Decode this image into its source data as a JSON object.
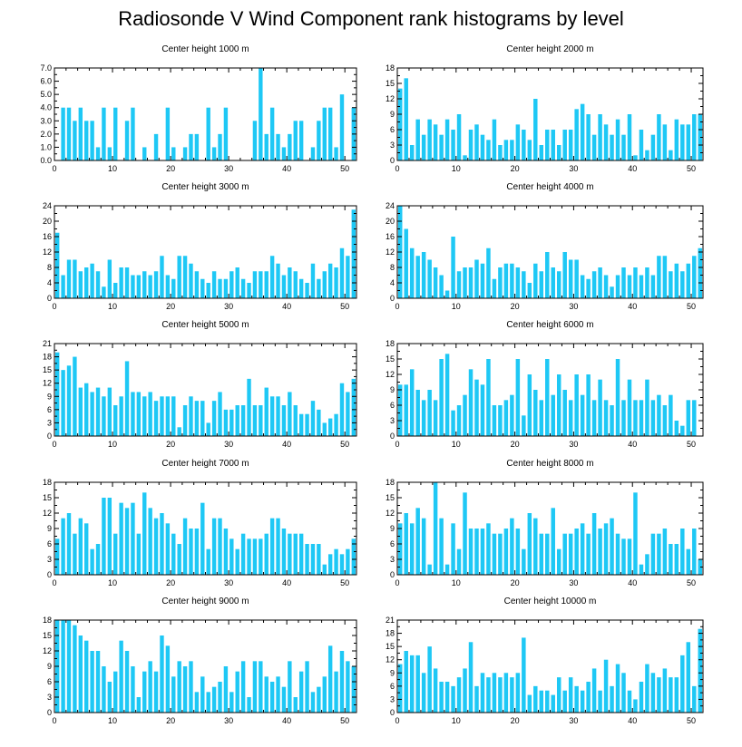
{
  "title": "Radiosonde V Wind Component rank histograms by level",
  "colors": {
    "bar": "#1ec8f5",
    "axis": "#000000",
    "background": "#ffffff"
  },
  "chart_data": [
    {
      "type": "bar",
      "title": "Center height 1000 m",
      "xlim": [
        0,
        52
      ],
      "ylim": [
        0,
        7
      ],
      "xticks": [
        0,
        10,
        20,
        30,
        40,
        50
      ],
      "yticks": [
        0,
        1,
        2,
        3,
        4,
        5,
        6,
        7
      ],
      "ytick_labels": [
        "0.0",
        "1.0",
        "2.0",
        "3.0",
        "4.0",
        "5.0",
        "6.0",
        "7.0"
      ],
      "values": [
        0,
        4,
        4,
        3,
        4,
        3,
        3,
        1,
        4,
        1,
        4,
        0,
        3,
        4,
        0,
        1,
        0,
        2,
        0,
        4,
        1,
        0,
        1,
        2,
        2,
        0,
        4,
        1,
        2,
        4,
        0,
        0,
        0,
        0,
        3,
        7,
        2,
        4,
        2,
        1,
        2,
        3,
        3,
        0,
        1,
        3,
        4,
        4,
        1,
        5,
        0,
        4
      ]
    },
    {
      "type": "bar",
      "title": "Center height 2000 m",
      "xlim": [
        0,
        52
      ],
      "ylim": [
        0,
        18
      ],
      "xticks": [
        0,
        10,
        20,
        30,
        40,
        50
      ],
      "yticks": [
        0,
        3,
        6,
        9,
        12,
        15,
        18
      ],
      "ytick_labels": [
        "0",
        "3",
        "6",
        "9",
        "12",
        "15",
        "18"
      ],
      "values": [
        14,
        16,
        3,
        8,
        5,
        8,
        7,
        5,
        8,
        6,
        9,
        1,
        6,
        7,
        5,
        4,
        8,
        3,
        4,
        4,
        7,
        6,
        4,
        12,
        3,
        6,
        6,
        3,
        6,
        6,
        10,
        11,
        9,
        5,
        9,
        7,
        5,
        8,
        5,
        9,
        1,
        6,
        2,
        5,
        9,
        7,
        2,
        8,
        7,
        7,
        9,
        9
      ]
    },
    {
      "type": "bar",
      "title": "Center height 3000 m",
      "xlim": [
        0,
        52
      ],
      "ylim": [
        0,
        24
      ],
      "xticks": [
        0,
        10,
        20,
        30,
        40,
        50
      ],
      "yticks": [
        0,
        4,
        8,
        12,
        16,
        20,
        24
      ],
      "ytick_labels": [
        "0",
        "4",
        "8",
        "12",
        "16",
        "20",
        "24"
      ],
      "values": [
        17,
        6,
        10,
        10,
        7,
        8,
        9,
        7,
        3,
        10,
        4,
        8,
        8,
        6,
        6,
        7,
        6,
        7,
        11,
        6,
        5,
        11,
        11,
        9,
        7,
        5,
        4,
        7,
        5,
        5,
        7,
        8,
        5,
        4,
        7,
        7,
        7,
        11,
        9,
        6,
        8,
        7,
        5,
        4,
        9,
        5,
        7,
        9,
        8,
        13,
        11,
        23
      ]
    },
    {
      "type": "bar",
      "title": "Center height 4000 m",
      "xlim": [
        0,
        52
      ],
      "ylim": [
        0,
        24
      ],
      "xticks": [
        0,
        10,
        20,
        30,
        40,
        50
      ],
      "yticks": [
        0,
        4,
        8,
        12,
        16,
        20,
        24
      ],
      "ytick_labels": [
        "0",
        "4",
        "8",
        "12",
        "16",
        "20",
        "24"
      ],
      "values": [
        24,
        18,
        13,
        11,
        12,
        10,
        8,
        6,
        2,
        16,
        7,
        8,
        8,
        10,
        9,
        13,
        5,
        8,
        9,
        9,
        8,
        7,
        4,
        9,
        7,
        12,
        8,
        7,
        12,
        10,
        10,
        6,
        5,
        7,
        8,
        6,
        3,
        6,
        8,
        6,
        8,
        6,
        8,
        6,
        11,
        11,
        7,
        9,
        7,
        9,
        11,
        13
      ]
    },
    {
      "type": "bar",
      "title": "Center height 5000 m",
      "xlim": [
        0,
        52
      ],
      "ylim": [
        0,
        21
      ],
      "xticks": [
        0,
        10,
        20,
        30,
        40,
        50
      ],
      "yticks": [
        0,
        3,
        6,
        9,
        12,
        15,
        18,
        21
      ],
      "ytick_labels": [
        "0",
        "3",
        "6",
        "9",
        "12",
        "15",
        "18",
        "21"
      ],
      "values": [
        19,
        15,
        16,
        18,
        11,
        12,
        10,
        11,
        9,
        11,
        7,
        9,
        17,
        10,
        10,
        9,
        10,
        8,
        9,
        9,
        9,
        2,
        7,
        9,
        8,
        8,
        3,
        8,
        10,
        6,
        6,
        7,
        7,
        13,
        7,
        7,
        11,
        9,
        9,
        7,
        10,
        7,
        5,
        5,
        8,
        6,
        3,
        4,
        5,
        12,
        10,
        13
      ]
    },
    {
      "type": "bar",
      "title": "Center height 6000 m",
      "xlim": [
        0,
        52
      ],
      "ylim": [
        0,
        18
      ],
      "xticks": [
        0,
        10,
        20,
        30,
        40,
        50
      ],
      "yticks": [
        0,
        3,
        6,
        9,
        12,
        15,
        18
      ],
      "ytick_labels": [
        "0",
        "3",
        "6",
        "9",
        "12",
        "15",
        "18"
      ],
      "values": [
        10,
        10,
        13,
        9,
        7,
        9,
        7,
        15,
        16,
        5,
        6,
        8,
        13,
        11,
        10,
        15,
        6,
        6,
        7,
        8,
        15,
        4,
        12,
        9,
        7,
        15,
        8,
        12,
        9,
        7,
        12,
        8,
        12,
        7,
        11,
        7,
        6,
        15,
        7,
        11,
        7,
        7,
        11,
        7,
        8,
        6,
        8,
        3,
        2,
        7,
        7,
        0
      ]
    },
    {
      "type": "bar",
      "title": "Center height 7000 m",
      "xlim": [
        0,
        52
      ],
      "ylim": [
        0,
        18
      ],
      "xticks": [
        0,
        10,
        20,
        30,
        40,
        50
      ],
      "yticks": [
        0,
        3,
        6,
        9,
        12,
        15,
        18
      ],
      "ytick_labels": [
        "0",
        "3",
        "6",
        "9",
        "12",
        "15",
        "18"
      ],
      "values": [
        7,
        11,
        12,
        8,
        11,
        10,
        5,
        6,
        15,
        15,
        8,
        14,
        13,
        14,
        8,
        16,
        13,
        11,
        12,
        10,
        8,
        6,
        11,
        9,
        9,
        14,
        5,
        11,
        11,
        9,
        7,
        5,
        8,
        7,
        7,
        7,
        8,
        11,
        11,
        9,
        8,
        8,
        8,
        6,
        6,
        6,
        2,
        4,
        5,
        4,
        5,
        7
      ]
    },
    {
      "type": "bar",
      "title": "Center height 8000 m",
      "xlim": [
        0,
        52
      ],
      "ylim": [
        0,
        18
      ],
      "xticks": [
        0,
        10,
        20,
        30,
        40,
        50
      ],
      "yticks": [
        0,
        3,
        6,
        9,
        12,
        15,
        18
      ],
      "ytick_labels": [
        "0",
        "3",
        "6",
        "9",
        "12",
        "15",
        "18"
      ],
      "values": [
        10,
        12,
        10,
        13,
        11,
        2,
        18,
        11,
        2,
        10,
        5,
        16,
        9,
        9,
        9,
        10,
        8,
        8,
        9,
        11,
        9,
        5,
        12,
        11,
        8,
        8,
        13,
        5,
        8,
        8,
        9,
        10,
        8,
        12,
        9,
        10,
        11,
        8,
        7,
        7,
        16,
        2,
        4,
        8,
        8,
        9,
        6,
        6,
        9,
        5,
        9,
        3
      ]
    },
    {
      "type": "bar",
      "title": "Center height 9000 m",
      "xlim": [
        0,
        52
      ],
      "ylim": [
        0,
        18
      ],
      "xticks": [
        0,
        10,
        20,
        30,
        40,
        50
      ],
      "yticks": [
        0,
        3,
        6,
        9,
        12,
        15,
        18
      ],
      "ytick_labels": [
        "0",
        "3",
        "6",
        "9",
        "12",
        "15",
        "18"
      ],
      "values": [
        18,
        18,
        18,
        17,
        15,
        14,
        12,
        12,
        9,
        6,
        8,
        14,
        12,
        9,
        3,
        8,
        10,
        8,
        15,
        13,
        7,
        10,
        9,
        10,
        4,
        7,
        4,
        5,
        6,
        9,
        4,
        8,
        10,
        3,
        10,
        10,
        7,
        6,
        7,
        5,
        10,
        3,
        8,
        10,
        4,
        5,
        7,
        13,
        8,
        12,
        10,
        9
      ]
    },
    {
      "type": "bar",
      "title": "Center height 10000 m",
      "xlim": [
        0,
        52
      ],
      "ylim": [
        0,
        21
      ],
      "xticks": [
        0,
        10,
        20,
        30,
        40,
        50
      ],
      "yticks": [
        0,
        3,
        6,
        9,
        12,
        15,
        18,
        21
      ],
      "ytick_labels": [
        "0",
        "3",
        "6",
        "9",
        "12",
        "15",
        "18",
        "21"
      ],
      "values": [
        11,
        14,
        13,
        13,
        9,
        15,
        10,
        7,
        7,
        6,
        8,
        10,
        16,
        6,
        9,
        8,
        9,
        8,
        9,
        8,
        9,
        17,
        4,
        6,
        5,
        5,
        4,
        8,
        5,
        8,
        6,
        5,
        7,
        10,
        5,
        12,
        6,
        11,
        9,
        5,
        3,
        7,
        11,
        9,
        8,
        10,
        8,
        8,
        13,
        16,
        6,
        19
      ]
    }
  ]
}
